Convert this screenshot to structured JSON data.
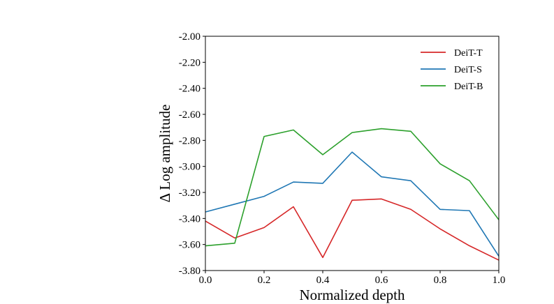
{
  "chart_data": {
    "type": "line",
    "title": "",
    "xlabel": "Normalized depth",
    "ylabel": "Δ Log amplitude",
    "xlim": [
      0.0,
      1.0
    ],
    "ylim": [
      -3.8,
      -2.0
    ],
    "xticks": [
      0.0,
      0.2,
      0.4,
      0.6,
      0.8,
      1.0
    ],
    "xtick_labels": [
      "0.0",
      "0.2",
      "0.4",
      "0.6",
      "0.8",
      "1.0"
    ],
    "yticks": [
      -2.0,
      -2.2,
      -2.4,
      -2.6,
      -2.8,
      -3.0,
      -3.2,
      -3.4,
      -3.6,
      -3.8
    ],
    "ytick_labels": [
      "-2.00",
      "-2.20",
      "-2.40",
      "-2.60",
      "-2.80",
      "-3.00",
      "-3.20",
      "-3.40",
      "-3.60",
      "-3.80"
    ],
    "grid": false,
    "legend_position": "top-right",
    "x": [
      0.0,
      0.1,
      0.2,
      0.3,
      0.4,
      0.5,
      0.6,
      0.7,
      0.8,
      0.9,
      1.0
    ],
    "series": [
      {
        "name": "DeiT-T",
        "color": "#d62728",
        "values": [
          -3.42,
          -3.55,
          -3.47,
          -3.31,
          -3.7,
          -3.26,
          -3.25,
          -3.33,
          -3.48,
          -3.61,
          -3.72
        ]
      },
      {
        "name": "DeiT-S",
        "color": "#1f77b4",
        "values": [
          -3.35,
          -3.29,
          -3.23,
          -3.12,
          -3.13,
          -2.89,
          -3.08,
          -3.11,
          -3.33,
          -3.34,
          -3.69
        ]
      },
      {
        "name": "DeiT-B",
        "color": "#2ca02c",
        "values": [
          -3.61,
          -3.59,
          -2.77,
          -2.72,
          -2.91,
          -2.74,
          -2.71,
          -2.73,
          -2.98,
          -3.11,
          -3.41
        ]
      }
    ]
  }
}
